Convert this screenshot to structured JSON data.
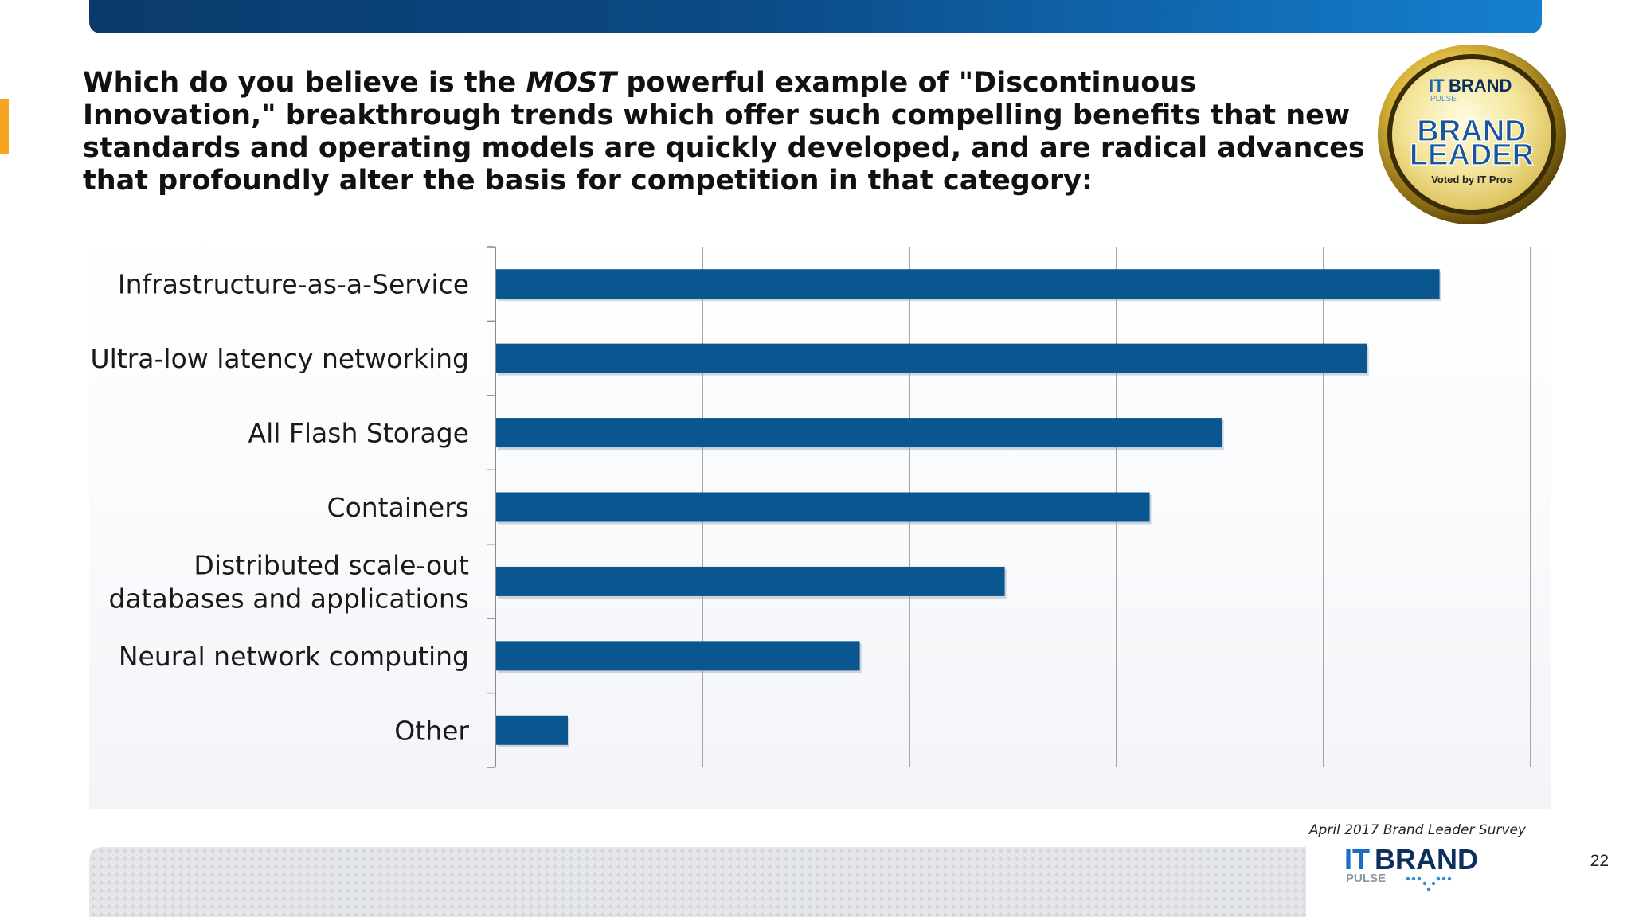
{
  "header": {
    "question_before": "Which do you believe is the ",
    "question_em": "MOST",
    "question_after": " powerful example of \"Discontinuous Innovation,\" breakthrough trends which offer such compelling benefits that new standards and operating models are quickly developed, and are radical advances that profoundly alter the basis for competition in that category:"
  },
  "badge": {
    "brand_top_it": "IT",
    "brand_top_rest": "BRAND",
    "brand_pulse": "PULSE",
    "title_line1": "BRAND",
    "title_line2": "LEADER",
    "voted": "Voted by IT Pros"
  },
  "footer": {
    "survey_note": "April 2017 Brand Leader Survey",
    "page_number": "22",
    "logo_it": "IT",
    "logo_brand": "BRAND",
    "logo_pulse": "PULSE"
  },
  "colors": {
    "bar": "#0a5690",
    "gridline": "#8a8a8a",
    "accent_orange": "#f7a520",
    "top_bar_dark": "#0a3a6b",
    "top_bar_light": "#1580d0"
  },
  "chart_data": {
    "type": "bar",
    "orientation": "horizontal",
    "title": "",
    "xlabel": "",
    "ylabel": "",
    "categories": [
      [
        "Infrastructure-as-a-Service"
      ],
      [
        "Ultra-low latency networking"
      ],
      [
        "All Flash Storage"
      ],
      [
        "Containers"
      ],
      [
        "Distributed scale-out",
        "databases and applications"
      ],
      [
        "Neural network computing"
      ],
      [
        "Other"
      ]
    ],
    "values": [
      22.8,
      21.05,
      17.55,
      15.8,
      12.3,
      8.8,
      1.75
    ],
    "xlim": [
      0,
      25
    ],
    "major_unit": 5,
    "tick_labels_shown": false,
    "grid": true,
    "legend": "none"
  }
}
